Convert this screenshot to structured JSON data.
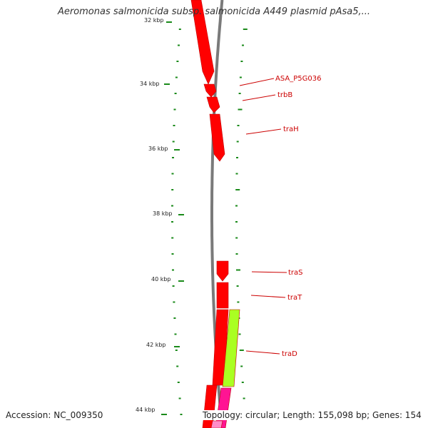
{
  "title": "Aeromonas salmonicida subsp. salmonicida A449 plasmid pAsa5,...",
  "footer": {
    "accession": "Accession: NC_009350",
    "summary": "Topology: circular; Length: 155,098 bp; Genes: 154"
  },
  "colors": {
    "backbone": "#7a7a7a",
    "cds": "#ff0000",
    "cds_edge": "#c00000",
    "gene_green": "#aaff22",
    "gene_magenta": "#ff1493",
    "gene_pink": "#ff8cc8",
    "tick": "#1a8a1a",
    "label": "#cc0000",
    "leader": "#cc0000"
  },
  "axis": {
    "unit": "kbp",
    "ticks": [
      {
        "label": "32 kbp"
      },
      {
        "label": "34 kbp"
      },
      {
        "label": "36 kbp"
      },
      {
        "label": "38 kbp"
      },
      {
        "label": "40 kbp"
      },
      {
        "label": "42 kbp"
      },
      {
        "label": "44 kbp"
      }
    ]
  },
  "genes": [
    {
      "name": "ASA_P5G036"
    },
    {
      "name": "trbB"
    },
    {
      "name": "traH"
    },
    {
      "name": "traS"
    },
    {
      "name": "traT"
    },
    {
      "name": "traD"
    }
  ]
}
